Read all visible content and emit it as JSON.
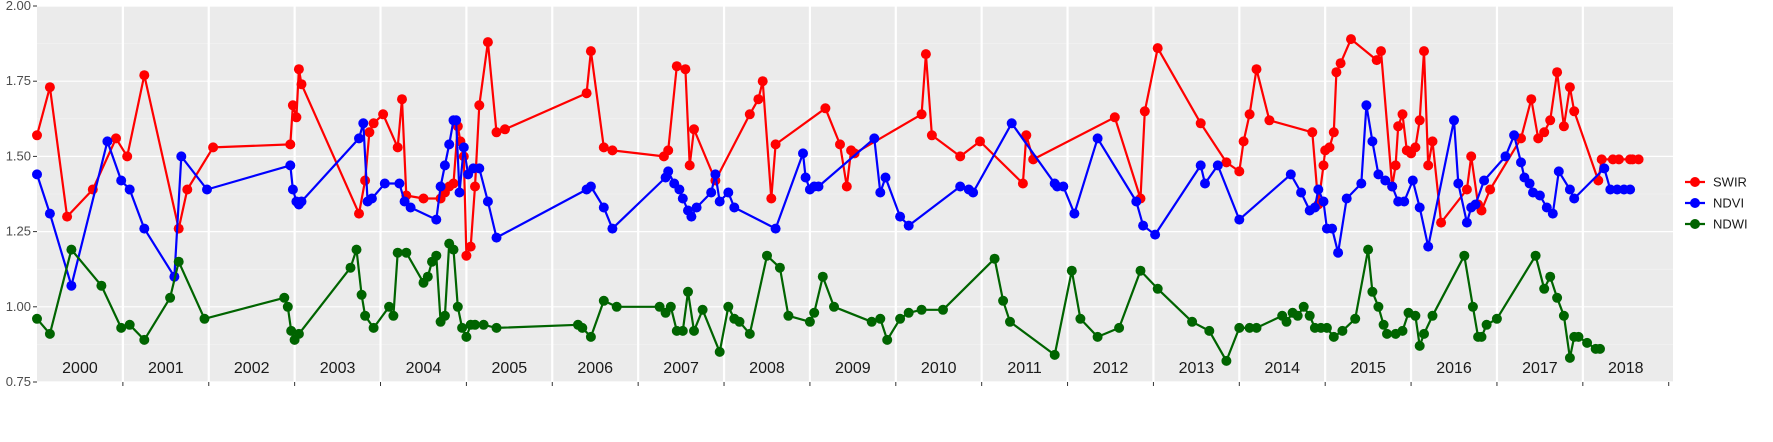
{
  "chart_data": {
    "type": "line",
    "title": "",
    "xlabel": "",
    "ylabel": "",
    "ylim": [
      0.75,
      2.0
    ],
    "xlim": [
      2000.0,
      2019.05
    ],
    "yticks": [
      "0.75",
      "1.00",
      "1.25",
      "1.50",
      "1.75",
      "2.00"
    ],
    "year_labels": [
      "2000",
      "2001",
      "2002",
      "2003",
      "2004",
      "2005",
      "2006",
      "2007",
      "2008",
      "2009",
      "2010",
      "2011",
      "2012",
      "2013",
      "2014",
      "2015",
      "2016",
      "2017",
      "2018"
    ],
    "grid": true,
    "legend_position": "right",
    "colors": {
      "panel_bg": "#EBEBEB",
      "grid_major": "#FFFFFF",
      "grid_minor": "#F4F4F4",
      "tick_text": "#4D4D4D"
    },
    "series": [
      {
        "name": "SWIR",
        "color": "#FF0000",
        "x": [
          2000.0,
          2000.15,
          2000.35,
          2000.65,
          2000.92,
          2001.05,
          2001.25,
          2001.65,
          2001.75,
          2002.05,
          2002.95,
          2002.98,
          2003.02,
          2003.05,
          2003.08,
          2003.75,
          2003.82,
          2003.87,
          2003.92,
          2004.03,
          2004.2,
          2004.25,
          2004.3,
          2004.5,
          2004.7,
          2004.75,
          2004.8,
          2004.85,
          2004.9,
          2004.93,
          2004.97,
          2005.0,
          2005.05,
          2005.1,
          2005.15,
          2005.25,
          2005.35,
          2005.45,
          2006.4,
          2006.45,
          2006.6,
          2006.7,
          2007.3,
          2007.35,
          2007.45,
          2007.55,
          2007.6,
          2007.65,
          2007.9,
          2008.3,
          2008.4,
          2008.45,
          2008.55,
          2008.6,
          2009.18,
          2009.35,
          2009.43,
          2009.48,
          2009.52,
          2010.3,
          2010.35,
          2010.42,
          2010.75,
          2010.98,
          2011.48,
          2011.52,
          2011.6,
          2012.55,
          2012.85,
          2012.9,
          2013.05,
          2013.55,
          2013.85,
          2014.0,
          2014.05,
          2014.12,
          2014.2,
          2014.35,
          2014.85,
          2014.92,
          2014.98,
          2015.0,
          2015.05,
          2015.1,
          2015.13,
          2015.18,
          2015.3,
          2015.6,
          2015.65,
          2015.78,
          2015.82,
          2015.85,
          2015.9,
          2015.95,
          2016.0,
          2016.05,
          2016.1,
          2016.15,
          2016.2,
          2016.25,
          2016.35,
          2016.65,
          2016.7,
          2016.78,
          2016.82,
          2016.92,
          2017.28,
          2017.4,
          2017.48,
          2017.55,
          2017.62,
          2017.7,
          2017.78,
          2017.85,
          2017.9,
          2018.18,
          2018.22,
          2018.35,
          2018.42,
          2018.55,
          2018.58,
          2018.65
        ],
        "values": [
          1.57,
          1.73,
          1.3,
          1.39,
          1.56,
          1.5,
          1.77,
          1.26,
          1.39,
          1.53,
          1.54,
          1.67,
          1.63,
          1.79,
          1.74,
          1.31,
          1.42,
          1.58,
          1.61,
          1.64,
          1.53,
          1.69,
          1.37,
          1.36,
          1.36,
          1.38,
          1.4,
          1.41,
          1.6,
          1.55,
          1.5,
          1.17,
          1.2,
          1.4,
          1.67,
          1.88,
          1.58,
          1.59,
          1.71,
          1.85,
          1.53,
          1.52,
          1.5,
          1.52,
          1.8,
          1.79,
          1.47,
          1.59,
          1.42,
          1.64,
          1.69,
          1.75,
          1.36,
          1.54,
          1.66,
          1.54,
          1.4,
          1.52,
          1.51,
          1.64,
          1.84,
          1.57,
          1.5,
          1.55,
          1.41,
          1.57,
          1.49,
          1.63,
          1.36,
          1.65,
          1.86,
          1.61,
          1.48,
          1.45,
          1.55,
          1.64,
          1.79,
          1.62,
          1.58,
          1.34,
          1.47,
          1.52,
          1.53,
          1.58,
          1.78,
          1.81,
          1.89,
          1.82,
          1.85,
          1.4,
          1.47,
          1.6,
          1.64,
          1.52,
          1.51,
          1.53,
          1.62,
          1.85,
          1.47,
          1.55,
          1.28,
          1.39,
          1.5,
          1.34,
          1.32,
          1.39,
          1.56,
          1.69,
          1.56,
          1.58,
          1.62,
          1.78,
          1.6,
          1.73,
          1.65,
          1.42,
          1.49,
          1.49,
          1.49,
          1.49,
          1.49,
          1.49
        ]
      },
      {
        "name": "NDVI",
        "color": "#0000FF",
        "x": [
          2000.0,
          2000.15,
          2000.4,
          2000.82,
          2000.98,
          2001.08,
          2001.25,
          2001.6,
          2001.68,
          2001.98,
          2002.95,
          2002.98,
          2003.02,
          2003.05,
          2003.08,
          2003.75,
          2003.8,
          2003.85,
          2003.9,
          2004.05,
          2004.22,
          2004.28,
          2004.35,
          2004.65,
          2004.7,
          2004.75,
          2004.8,
          2004.85,
          2004.88,
          2004.92,
          2004.97,
          2005.02,
          2005.08,
          2005.15,
          2005.25,
          2005.35,
          2006.4,
          2006.45,
          2006.6,
          2006.7,
          2007.32,
          2007.35,
          2007.42,
          2007.48,
          2007.52,
          2007.58,
          2007.62,
          2007.68,
          2007.85,
          2007.9,
          2007.95,
          2008.05,
          2008.12,
          2008.6,
          2008.92,
          2008.95,
          2009.0,
          2009.05,
          2009.1,
          2009.75,
          2009.82,
          2009.88,
          2010.05,
          2010.15,
          2010.75,
          2010.85,
          2010.9,
          2011.35,
          2011.85,
          2011.88,
          2011.95,
          2012.08,
          2012.35,
          2012.8,
          2012.88,
          2013.02,
          2013.55,
          2013.6,
          2013.75,
          2014.0,
          2014.6,
          2014.72,
          2014.82,
          2014.88,
          2014.92,
          2014.98,
          2015.02,
          2015.08,
          2015.15,
          2015.25,
          2015.42,
          2015.48,
          2015.55,
          2015.62,
          2015.7,
          2015.78,
          2015.85,
          2015.92,
          2016.02,
          2016.1,
          2016.2,
          2016.5,
          2016.55,
          2016.65,
          2016.7,
          2016.75,
          2016.85,
          2017.1,
          2017.2,
          2017.28,
          2017.32,
          2017.38,
          2017.42,
          2017.5,
          2017.58,
          2017.65,
          2017.72,
          2017.85,
          2017.9,
          2018.25,
          2018.32,
          2018.4,
          2018.48,
          2018.55
        ],
        "values": [
          1.44,
          1.31,
          1.07,
          1.55,
          1.42,
          1.39,
          1.26,
          1.1,
          1.5,
          1.39,
          1.47,
          1.39,
          1.35,
          1.34,
          1.35,
          1.56,
          1.61,
          1.35,
          1.36,
          1.41,
          1.41,
          1.35,
          1.33,
          1.29,
          1.4,
          1.47,
          1.54,
          1.62,
          1.62,
          1.38,
          1.53,
          1.44,
          1.46,
          1.46,
          1.35,
          1.23,
          1.39,
          1.4,
          1.33,
          1.26,
          1.43,
          1.45,
          1.41,
          1.39,
          1.36,
          1.32,
          1.3,
          1.33,
          1.38,
          1.44,
          1.35,
          1.38,
          1.33,
          1.26,
          1.51,
          1.43,
          1.39,
          1.4,
          1.4,
          1.56,
          1.38,
          1.43,
          1.3,
          1.27,
          1.4,
          1.39,
          1.38,
          1.61,
          1.41,
          1.4,
          1.4,
          1.31,
          1.56,
          1.35,
          1.27,
          1.24,
          1.47,
          1.41,
          1.47,
          1.29,
          1.44,
          1.38,
          1.32,
          1.33,
          1.39,
          1.35,
          1.26,
          1.26,
          1.18,
          1.36,
          1.41,
          1.67,
          1.55,
          1.44,
          1.42,
          1.4,
          1.35,
          1.35,
          1.42,
          1.33,
          1.2,
          1.62,
          1.41,
          1.28,
          1.33,
          1.34,
          1.42,
          1.5,
          1.57,
          1.48,
          1.43,
          1.41,
          1.38,
          1.37,
          1.33,
          1.31,
          1.45,
          1.39,
          1.36,
          1.46,
          1.39,
          1.39,
          1.39,
          1.39
        ]
      },
      {
        "name": "NDWI",
        "color": "#006400",
        "x": [
          2000.0,
          2000.15,
          2000.4,
          2000.75,
          2000.98,
          2001.08,
          2001.25,
          2001.55,
          2001.65,
          2001.95,
          2002.88,
          2002.92,
          2002.96,
          2003.0,
          2003.05,
          2003.65,
          2003.72,
          2003.78,
          2003.82,
          2003.92,
          2004.1,
          2004.15,
          2004.2,
          2004.3,
          2004.5,
          2004.55,
          2004.6,
          2004.65,
          2004.7,
          2004.75,
          2004.8,
          2004.85,
          2004.9,
          2004.95,
          2005.0,
          2005.05,
          2005.1,
          2005.2,
          2005.35,
          2006.3,
          2006.35,
          2006.45,
          2006.6,
          2006.75,
          2007.25,
          2007.32,
          2007.38,
          2007.45,
          2007.52,
          2007.58,
          2007.65,
          2007.75,
          2007.95,
          2008.05,
          2008.12,
          2008.18,
          2008.3,
          2008.5,
          2008.65,
          2008.75,
          2009.0,
          2009.05,
          2009.15,
          2009.28,
          2009.72,
          2009.82,
          2009.9,
          2010.05,
          2010.15,
          2010.3,
          2010.55,
          2011.15,
          2011.25,
          2011.33,
          2011.85,
          2012.05,
          2012.15,
          2012.35,
          2012.6,
          2012.85,
          2013.05,
          2013.45,
          2013.65,
          2013.85,
          2014.0,
          2014.12,
          2014.2,
          2014.5,
          2014.55,
          2014.62,
          2014.68,
          2014.75,
          2014.82,
          2014.88,
          2014.95,
          2015.02,
          2015.1,
          2015.2,
          2015.35,
          2015.5,
          2015.55,
          2015.62,
          2015.68,
          2015.72,
          2015.82,
          2015.9,
          2015.97,
          2016.05,
          2016.1,
          2016.15,
          2016.25,
          2016.62,
          2016.72,
          2016.78,
          2016.82,
          2016.88,
          2017.0,
          2017.45,
          2017.55,
          2017.62,
          2017.7,
          2017.78,
          2017.85,
          2017.9,
          2017.95,
          2018.05,
          2018.15,
          2018.2
        ],
        "values": [
          0.96,
          0.91,
          1.19,
          1.07,
          0.93,
          0.94,
          0.89,
          1.03,
          1.15,
          0.96,
          1.03,
          1.0,
          0.92,
          0.89,
          0.91,
          1.13,
          1.19,
          1.04,
          0.97,
          0.93,
          1.0,
          0.97,
          1.18,
          1.18,
          1.08,
          1.1,
          1.15,
          1.17,
          0.95,
          0.97,
          1.21,
          1.19,
          1.0,
          0.93,
          0.9,
          0.94,
          0.94,
          0.94,
          0.93,
          0.94,
          0.93,
          0.9,
          1.02,
          1.0,
          1.0,
          0.98,
          1.0,
          0.92,
          0.92,
          1.05,
          0.92,
          0.99,
          0.85,
          1.0,
          0.96,
          0.95,
          0.91,
          1.17,
          1.13,
          0.97,
          0.95,
          0.98,
          1.1,
          1.0,
          0.95,
          0.96,
          0.89,
          0.96,
          0.98,
          0.99,
          0.99,
          1.16,
          1.02,
          0.95,
          0.84,
          1.12,
          0.96,
          0.9,
          0.93,
          1.12,
          1.06,
          0.95,
          0.92,
          0.82,
          0.93,
          0.93,
          0.93,
          0.97,
          0.95,
          0.98,
          0.97,
          1.0,
          0.97,
          0.93,
          0.93,
          0.93,
          0.9,
          0.92,
          0.96,
          1.19,
          1.05,
          1.0,
          0.94,
          0.91,
          0.91,
          0.92,
          0.98,
          0.97,
          0.87,
          0.91,
          0.97,
          1.17,
          1.0,
          0.9,
          0.9,
          0.94,
          0.96,
          1.17,
          1.06,
          1.1,
          1.03,
          0.97,
          0.83,
          0.9,
          0.9,
          0.88,
          0.86,
          0.86
        ]
      }
    ]
  }
}
